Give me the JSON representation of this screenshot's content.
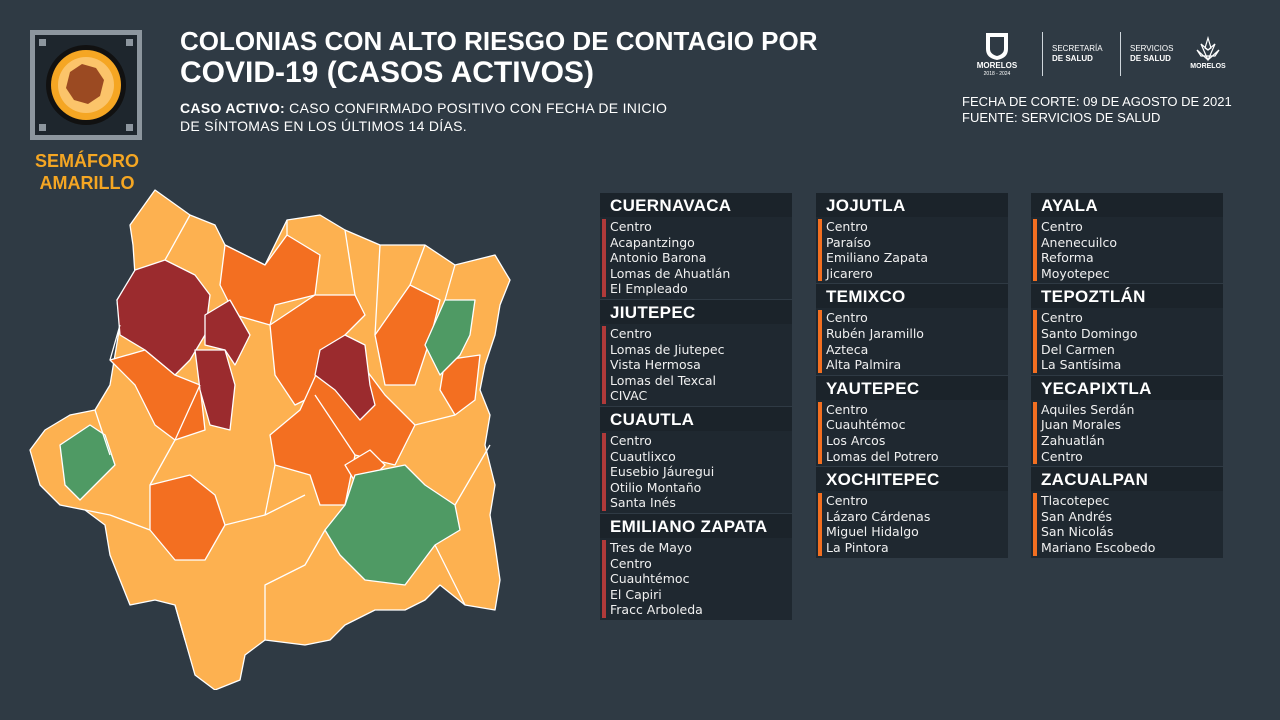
{
  "header": {
    "title_line1": "COLONIAS CON ALTO RIESGO DE CONTAGIO POR",
    "title_line2": "COVID-19 (CASOS ACTIVOS)",
    "subtitle_bold": "CASO ACTIVO:",
    "subtitle_rest": " CASO CONFIRMADO POSITIVO CON FECHA DE INICIO DE SÍNTOMAS EN LOS ÚLTIMOS 14 DÍAS."
  },
  "semaforo": {
    "line1": "SEMÁFORO",
    "line2": "AMARILLO",
    "color": "#f5a623"
  },
  "meta": {
    "fecha": "FECHA DE CORTE: 09 DE AGOSTO DE 2021",
    "fuente": "FUENTE: SERVICIOS DE SALUD"
  },
  "logos": {
    "morelos_gov": "MORELOS",
    "morelos_years": "2018 - 2024",
    "secretaria_line1": "SECRETARÍA",
    "secretaria_line2": "DE SALUD",
    "servicios_line1": "SERVICIOS",
    "servicios_line2": "DE SALUD",
    "morelos_brand": "MORELOS"
  },
  "colors": {
    "background": "#2f3a44",
    "very_high": "#9b2b2e",
    "high": "#f36f21",
    "medium": "#fdb150",
    "low": "#4f9a64",
    "bar_red": "#b03a3a",
    "bar_orange": "#f36f21"
  },
  "municipios": [
    {
      "name": "CUERNAVACA",
      "level": "very_high",
      "colonias": [
        "Centro",
        "Acapantzingo",
        "Antonio Barona",
        "Lomas de Ahuatlán",
        "El Empleado"
      ]
    },
    {
      "name": "JIUTEPEC",
      "level": "very_high",
      "colonias": [
        "Centro",
        "Lomas de Jiutepec",
        "Vista Hermosa",
        "Lomas del Texcal",
        "CIVAC"
      ]
    },
    {
      "name": "CUAUTLA",
      "level": "very_high",
      "colonias": [
        "Centro",
        "Cuautlixco",
        "Eusebio Jáuregui",
        "Otilio Montaño",
        "Santa Inés"
      ]
    },
    {
      "name": "EMILIANO ZAPATA",
      "level": "very_high",
      "colonias": [
        "Tres de Mayo",
        "Centro",
        "Cuauhtémoc",
        "El Capiri",
        "Fracc Arboleda"
      ]
    },
    {
      "name": "JOJUTLA",
      "level": "high",
      "colonias": [
        "Centro",
        "Paraíso",
        "Emiliano Zapata",
        "Jicarero"
      ]
    },
    {
      "name": "TEMIXCO",
      "level": "high",
      "colonias": [
        "Centro",
        "Rubén Jaramillo",
        "Azteca",
        "Alta Palmira"
      ]
    },
    {
      "name": "YAUTEPEC",
      "level": "high",
      "colonias": [
        "Centro",
        "Cuauhtémoc",
        "Los Arcos",
        "Lomas del Potrero"
      ]
    },
    {
      "name": "XOCHITEPEC",
      "level": "high",
      "colonias": [
        "Centro",
        "Lázaro Cárdenas",
        "Miguel Hidalgo",
        "La Pintora"
      ]
    },
    {
      "name": "AYALA",
      "level": "high",
      "colonias": [
        "Centro",
        "Anenecuilco",
        "Reforma",
        "Moyotepec"
      ]
    },
    {
      "name": "TEPOZTLÁN",
      "level": "high",
      "colonias": [
        "Centro",
        "Santo Domingo",
        "Del Carmen",
        "La Santísima"
      ]
    },
    {
      "name": "YECAPIXTLA",
      "level": "high",
      "colonias": [
        "Aquiles Serdán",
        "Juan Morales",
        "Zahuatlán",
        "Centro"
      ]
    },
    {
      "name": "ZACUALPAN",
      "level": "high",
      "colonias": [
        "Tlacotepec",
        "San Andrés",
        "San Nicolás",
        "Mariano Escobedo"
      ]
    }
  ]
}
